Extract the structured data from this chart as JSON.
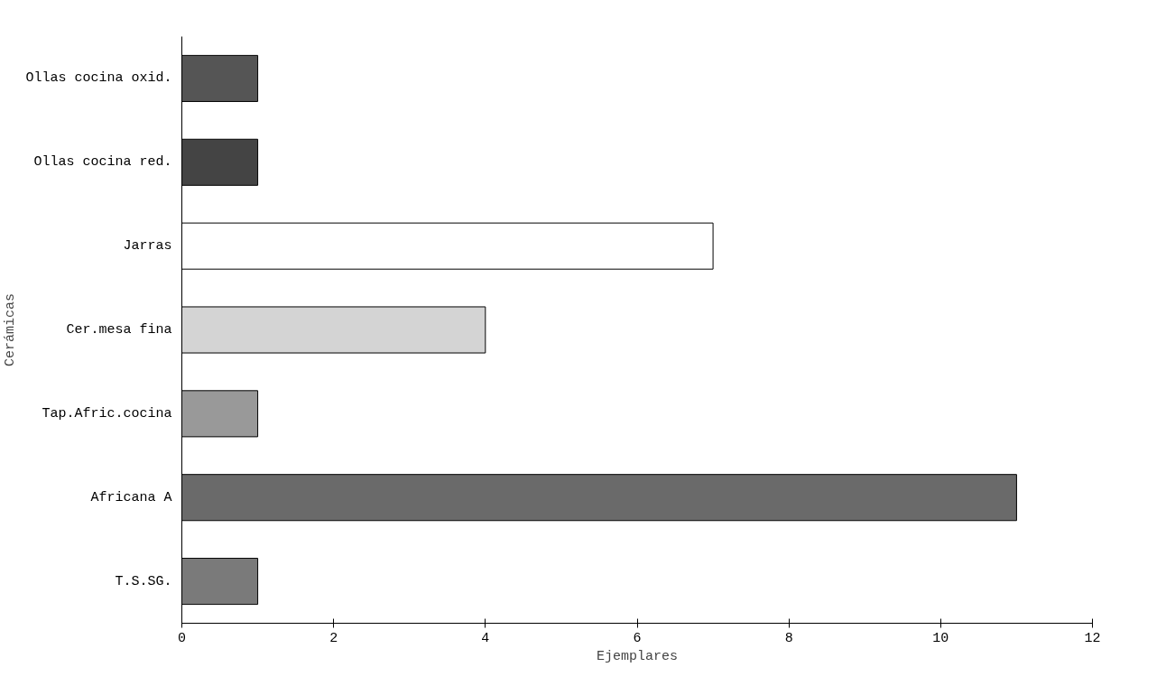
{
  "chart_data": {
    "type": "bar",
    "orientation": "horizontal",
    "xlabel": "Ejemplares",
    "ylabel": "Cerámicas",
    "categories": [
      "Ollas cocina oxid.",
      "Ollas cocina red.",
      "Jarras",
      "Cer.mesa fina",
      "Tap.Afric.cocina",
      "Africana A",
      "T.S.SG."
    ],
    "values": [
      1,
      1,
      7,
      4,
      1,
      11,
      1
    ],
    "colors": [
      "#555555",
      "#444444",
      "#ffffff",
      "#d4d4d4",
      "#999999",
      "#6a6a6a",
      "#7a7a7a"
    ],
    "xlim": [
      0,
      12
    ],
    "xticks": [
      0,
      2,
      4,
      6,
      8,
      10,
      12
    ],
    "grid": false
  }
}
